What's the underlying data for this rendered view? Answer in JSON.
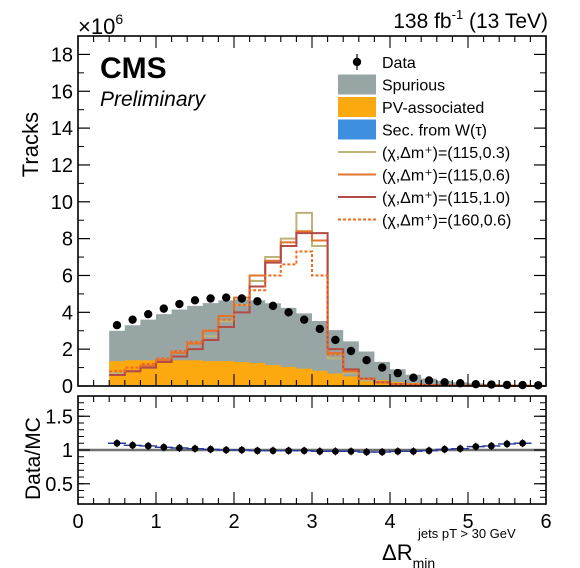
{
  "header": {
    "lumi_main": "138 fb",
    "lumi_exp": "-1",
    "lumi_tail": " (13 TeV)",
    "experiment": "CMS",
    "status": "Preliminary",
    "exponent_base": "×10",
    "exponent_power": "6"
  },
  "chart_data": [
    {
      "type": "histogram-stacked",
      "panel": "main",
      "ylabel": "Tracks",
      "xlim": [
        0,
        6
      ],
      "ylim": [
        0,
        19
      ],
      "y_scale_note": "×10^6",
      "yticks": [
        0,
        2,
        4,
        6,
        8,
        10,
        12,
        14,
        16,
        18
      ],
      "bin_edges": [
        0.4,
        0.6,
        0.8,
        1.0,
        1.2,
        1.4,
        1.6,
        1.8,
        2.0,
        2.2,
        2.4,
        2.6,
        2.8,
        3.0,
        3.2,
        3.4,
        3.6,
        3.8,
        4.0,
        4.2,
        4.4,
        4.6,
        4.8,
        5.0,
        5.2,
        5.4,
        5.6,
        5.8,
        6.0
      ],
      "legend": {
        "position": "top-right",
        "entries": [
          {
            "label": "Data",
            "kind": "marker",
            "color": "#000000"
          },
          {
            "label": "Spurious",
            "kind": "fill",
            "color": "#97a5a5"
          },
          {
            "label": "PV-associated",
            "kind": "fill",
            "color": "#fca80f"
          },
          {
            "label": "Sec. from W(τ)",
            "kind": "fill",
            "color": "#3e8fdf"
          },
          {
            "label": "(χ,Δm⁺)=(115,0.3)",
            "kind": "line",
            "color": "#bdb278",
            "dash": "solid"
          },
          {
            "label": "(χ,Δm⁺)=(115,0.6)",
            "kind": "line",
            "color": "#e0752c",
            "dash": "solid"
          },
          {
            "label": "(χ,Δm⁺)=(115,1.0)",
            "kind": "line",
            "color": "#b24a46",
            "dash": "solid"
          },
          {
            "label": "(χ,Δm⁺)=(160,0.6)",
            "kind": "line",
            "color": "#f26a1d",
            "dash": "dotted"
          }
        ]
      },
      "stacks": [
        {
          "name": "Sec. from W(τ)",
          "color": "#3e8fdf",
          "values": [
            0.05,
            0.05,
            0.05,
            0.05,
            0.05,
            0.05,
            0.05,
            0.05,
            0.05,
            0.05,
            0.04,
            0.04,
            0.04,
            0.03,
            0.03,
            0.02,
            0.02,
            0.01,
            0.01,
            0.01,
            0.0,
            0.0,
            0.0,
            0.0,
            0.0,
            0.0,
            0.0,
            0.0
          ]
        },
        {
          "name": "PV-associated",
          "color": "#fca80f",
          "values": [
            1.3,
            1.35,
            1.35,
            1.35,
            1.35,
            1.35,
            1.3,
            1.3,
            1.25,
            1.2,
            1.1,
            1.0,
            0.9,
            0.8,
            0.65,
            0.5,
            0.4,
            0.3,
            0.2,
            0.15,
            0.1,
            0.08,
            0.05,
            0.04,
            0.03,
            0.02,
            0.02,
            0.01
          ]
        },
        {
          "name": "Spurious",
          "color": "#97a5a5",
          "values": [
            1.65,
            1.9,
            2.2,
            2.5,
            2.75,
            2.95,
            3.15,
            3.3,
            3.4,
            3.4,
            3.35,
            3.2,
            3.0,
            2.7,
            2.35,
            1.9,
            1.45,
            1.0,
            0.7,
            0.45,
            0.3,
            0.2,
            0.15,
            0.1,
            0.08,
            0.06,
            0.05,
            0.04
          ]
        }
      ],
      "signals": [
        {
          "name": "(χ,Δm⁺)=(115,0.3)",
          "color": "#bdb278",
          "dash": "solid",
          "values": [
            0.7,
            0.8,
            1.0,
            1.3,
            1.6,
            2.0,
            2.7,
            3.5,
            4.4,
            5.7,
            7.0,
            8.0,
            9.4,
            7.6,
            1.5,
            0.7,
            0.3,
            0.2,
            0.1,
            0.08,
            0.05,
            0.04,
            0.03,
            0.02,
            0.02,
            0.01,
            0.01,
            0.0
          ]
        },
        {
          "name": "(χ,Δm⁺)=(115,0.6)",
          "color": "#e0752c",
          "dash": "solid",
          "values": [
            0.6,
            0.8,
            1.1,
            1.4,
            1.8,
            2.3,
            3.0,
            3.8,
            4.8,
            6.0,
            6.8,
            7.8,
            8.4,
            7.9,
            1.8,
            0.8,
            0.4,
            0.2,
            0.1,
            0.08,
            0.05,
            0.04,
            0.03,
            0.02,
            0.02,
            0.01,
            0.01,
            0.0
          ]
        },
        {
          "name": "(χ,Δm⁺)=(115,1.0)",
          "color": "#b24a46",
          "dash": "solid",
          "values": [
            0.6,
            0.8,
            1.0,
            1.3,
            1.6,
            2.0,
            2.5,
            3.2,
            4.0,
            5.4,
            6.7,
            7.6,
            8.3,
            8.3,
            2.0,
            0.9,
            0.4,
            0.2,
            0.1,
            0.08,
            0.05,
            0.04,
            0.03,
            0.02,
            0.02,
            0.01,
            0.01,
            0.0
          ]
        },
        {
          "name": "(χ,Δm⁺)=(160,0.6)",
          "color": "#f26a1d",
          "dash": "dotted",
          "values": [
            0.8,
            1.0,
            1.2,
            1.5,
            1.9,
            2.4,
            3.0,
            3.6,
            4.4,
            5.2,
            6.0,
            6.6,
            7.3,
            6.0,
            1.7,
            0.8,
            0.4,
            0.2,
            0.1,
            0.08,
            0.05,
            0.04,
            0.03,
            0.02,
            0.02,
            0.01,
            0.01,
            0.0
          ]
        }
      ],
      "data_points": {
        "name": "Data",
        "x": [
          0.5,
          0.7,
          0.9,
          1.1,
          1.3,
          1.5,
          1.7,
          1.9,
          2.1,
          2.3,
          2.5,
          2.7,
          2.9,
          3.1,
          3.3,
          3.5,
          3.7,
          3.9,
          4.1,
          4.3,
          4.5,
          4.7,
          4.9,
          5.1,
          5.3,
          5.5,
          5.7,
          5.9
        ],
        "y": [
          3.3,
          3.6,
          3.9,
          4.2,
          4.45,
          4.65,
          4.75,
          4.8,
          4.75,
          4.6,
          4.35,
          4.0,
          3.6,
          3.1,
          2.5,
          1.9,
          1.4,
          1.0,
          0.7,
          0.45,
          0.3,
          0.2,
          0.15,
          0.1,
          0.08,
          0.06,
          0.05,
          0.04
        ]
      }
    },
    {
      "type": "scatter",
      "panel": "ratio",
      "ylabel": "Data/MC",
      "xlabel": "ΔR",
      "xlabel_sub": "min",
      "xlabel_sup": "jets pT > 30 GeV",
      "xlim": [
        0,
        6
      ],
      "ylim": [
        0.2,
        1.8
      ],
      "yticks": [
        0.5,
        1,
        1.5
      ],
      "ytick_labels": [
        "0.5",
        "1",
        "1.5"
      ],
      "xticks": [
        0,
        1,
        2,
        3,
        4,
        5,
        6
      ],
      "xtick_labels": [
        "0",
        "1",
        "2",
        "3",
        "4",
        "5",
        "6"
      ],
      "band_color": "#7f7f7f",
      "x": [
        0.5,
        0.7,
        0.9,
        1.1,
        1.3,
        1.5,
        1.7,
        1.9,
        2.1,
        2.3,
        2.5,
        2.7,
        2.9,
        3.1,
        3.3,
        3.5,
        3.7,
        3.9,
        4.1,
        4.3,
        4.5,
        4.7,
        4.9,
        5.1,
        5.3,
        5.5,
        5.7
      ],
      "y": [
        1.1,
        1.07,
        1.06,
        1.04,
        1.03,
        1.02,
        1.01,
        1.0,
        1.0,
        0.99,
        0.99,
        0.99,
        0.99,
        0.98,
        0.98,
        0.98,
        0.97,
        0.97,
        0.98,
        0.98,
        0.99,
        1.01,
        1.02,
        1.05,
        1.06,
        1.09,
        1.1
      ]
    }
  ]
}
